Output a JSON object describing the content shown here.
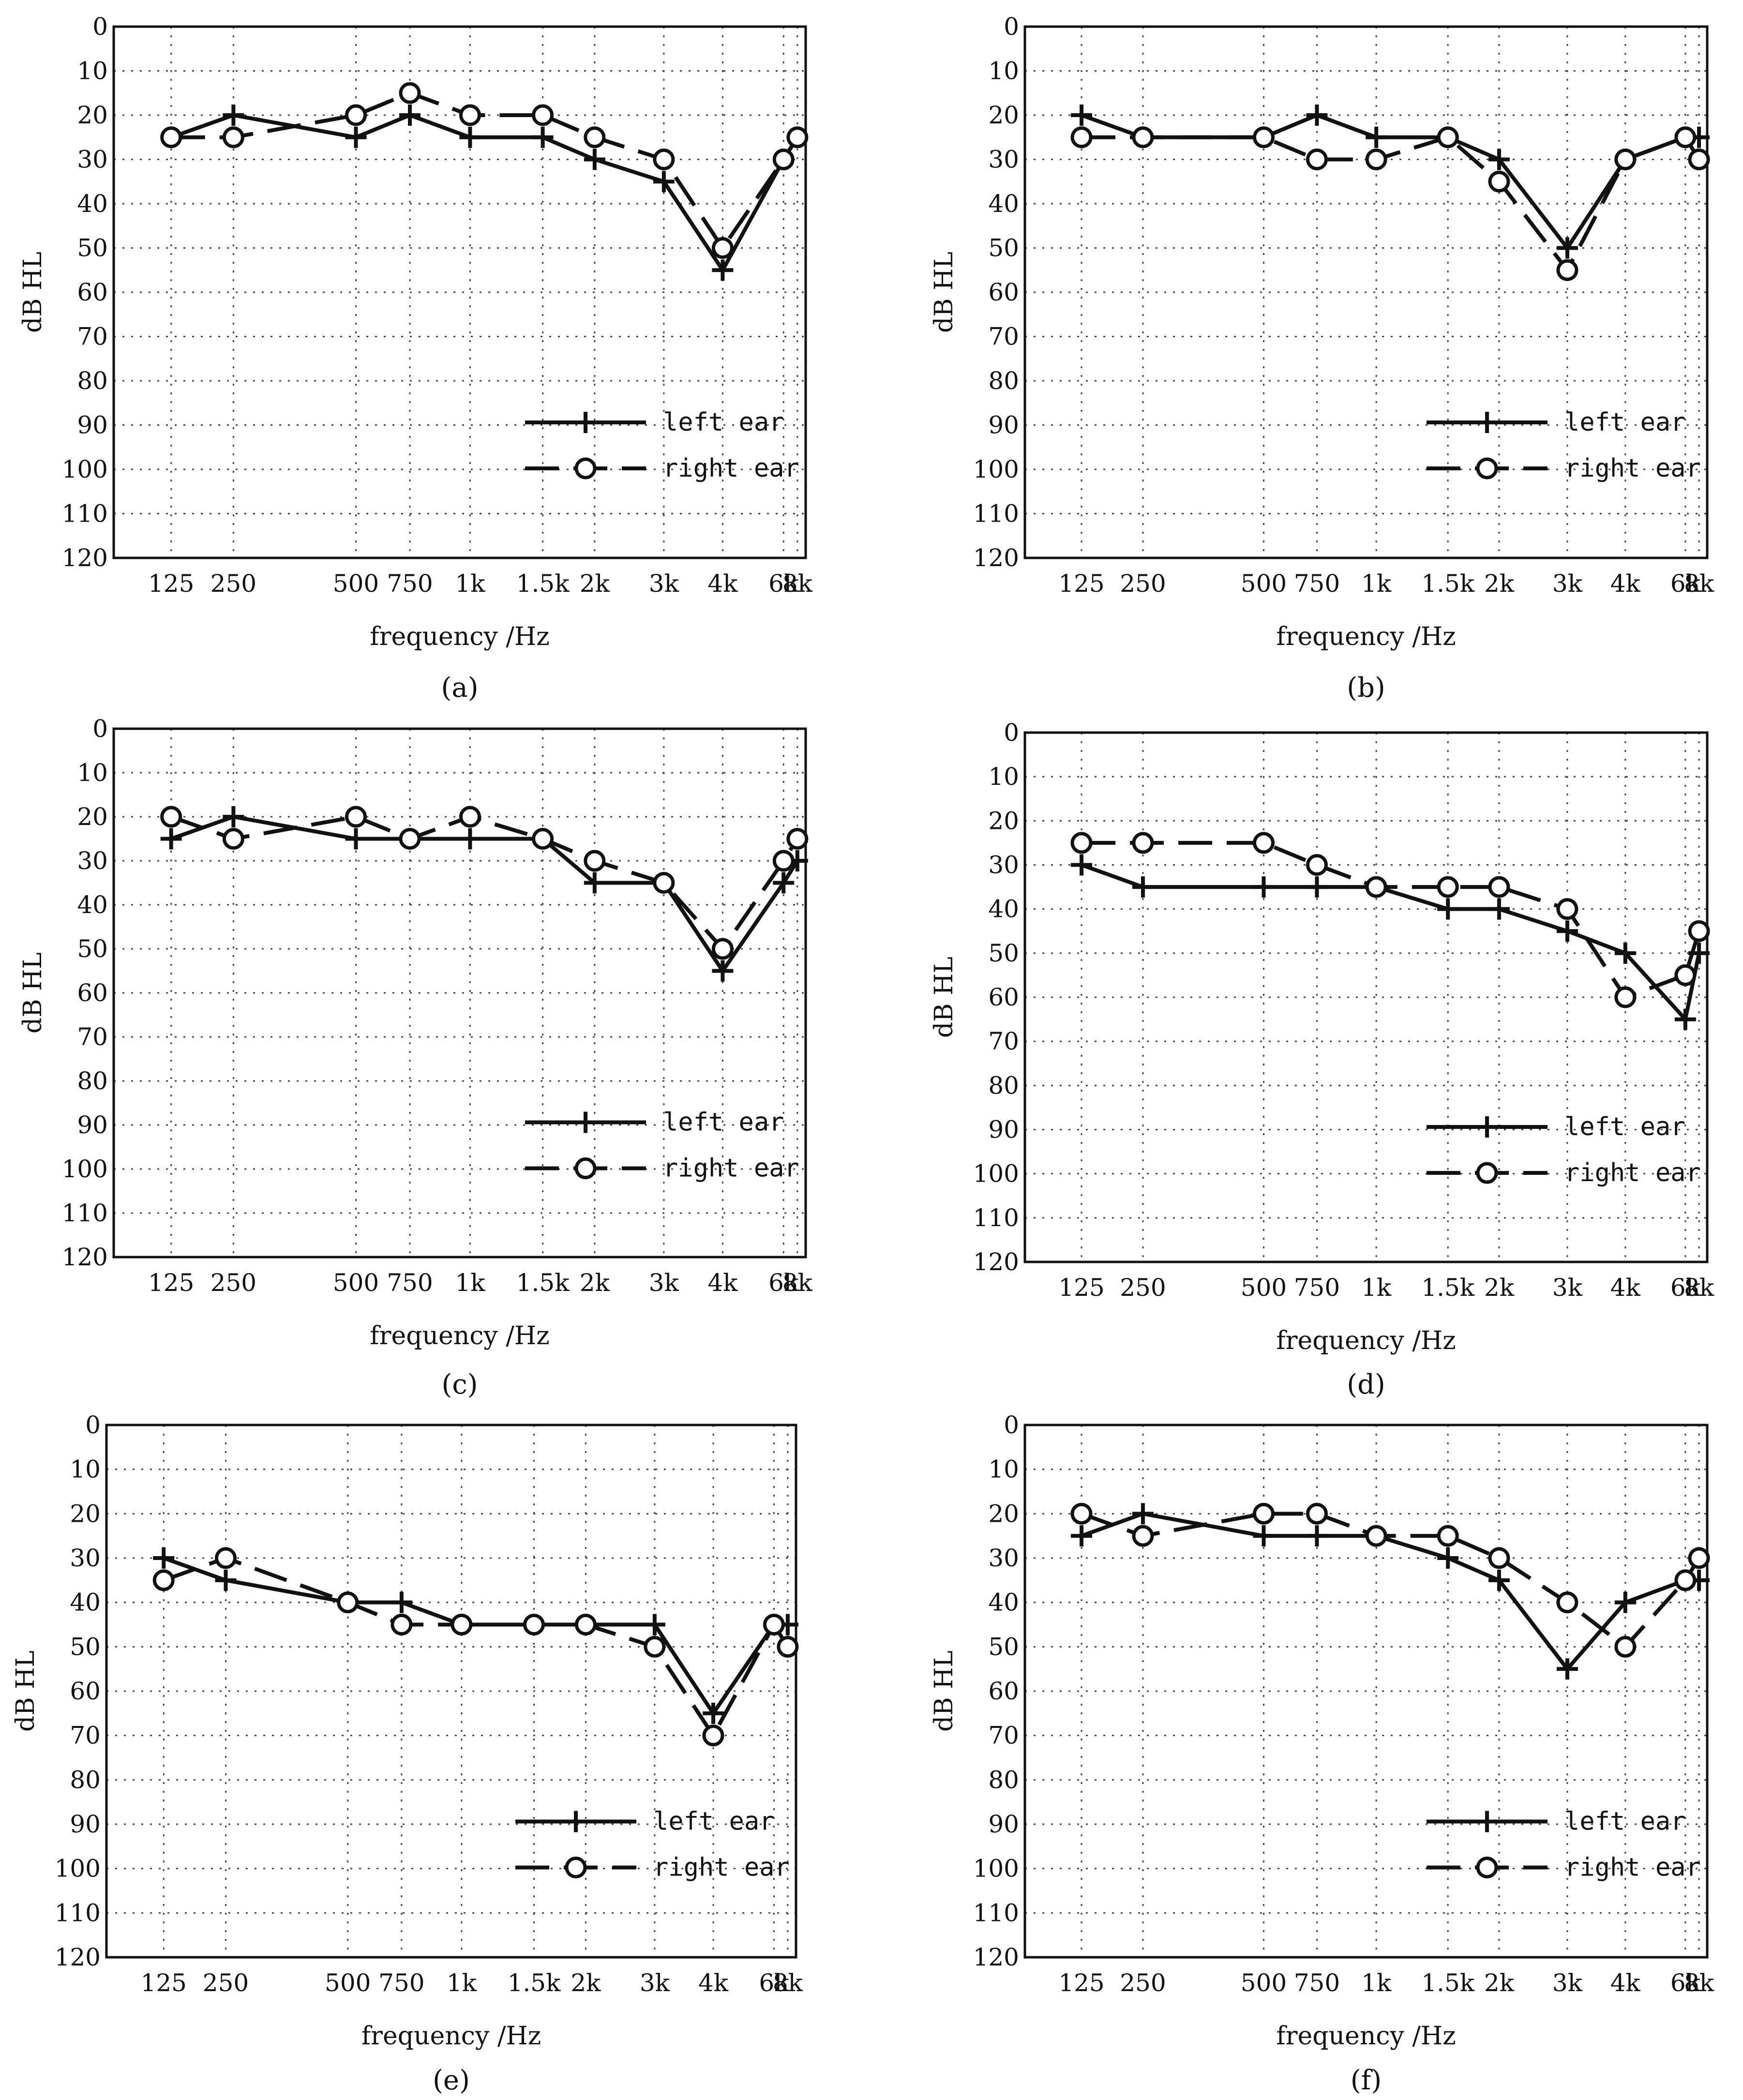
{
  "chart_data": [
    {
      "type": "line",
      "panel": "a",
      "caption": "(a)",
      "xlabel": "frequency /Hz",
      "ylabel": "dB HL",
      "ylim": [
        0,
        120
      ],
      "y_ticks": [
        0,
        10,
        20,
        30,
        40,
        50,
        60,
        70,
        80,
        90,
        100,
        110,
        120
      ],
      "y_inverted": true,
      "grid": true,
      "categories": [
        "125",
        "250",
        "500",
        "750",
        "1k",
        "1.5k",
        "2k",
        "3k",
        "4k",
        "6k",
        "8k"
      ],
      "series": [
        {
          "name": "left ear",
          "marker": "plus",
          "style": "solid",
          "values": [
            25,
            20,
            25,
            20,
            25,
            25,
            30,
            35,
            55,
            30,
            25
          ]
        },
        {
          "name": "right ear",
          "marker": "circle",
          "style": "dashed",
          "values": [
            25,
            25,
            20,
            15,
            20,
            20,
            25,
            30,
            50,
            30,
            25
          ]
        }
      ],
      "legend": "lower-right"
    },
    {
      "type": "line",
      "panel": "b",
      "caption": "(b)",
      "xlabel": "frequency /Hz",
      "ylabel": "dB HL",
      "ylim": [
        0,
        120
      ],
      "y_ticks": [
        0,
        10,
        20,
        30,
        40,
        50,
        60,
        70,
        80,
        90,
        100,
        110,
        120
      ],
      "y_inverted": true,
      "grid": true,
      "categories": [
        "125",
        "250",
        "500",
        "750",
        "1k",
        "1.5k",
        "2k",
        "3k",
        "4k",
        "6k",
        "8k"
      ],
      "series": [
        {
          "name": "left ear",
          "marker": "plus",
          "style": "solid",
          "values": [
            20,
            25,
            25,
            20,
            25,
            25,
            30,
            50,
            30,
            25,
            25
          ]
        },
        {
          "name": "right ear",
          "marker": "circle",
          "style": "dashed",
          "values": [
            25,
            25,
            25,
            30,
            30,
            25,
            35,
            55,
            30,
            25,
            30
          ]
        }
      ],
      "legend": "lower-right"
    },
    {
      "type": "line",
      "panel": "c",
      "caption": "(c)",
      "xlabel": "frequency /Hz",
      "ylabel": "dB HL",
      "ylim": [
        0,
        120
      ],
      "y_ticks": [
        0,
        10,
        20,
        30,
        40,
        50,
        60,
        70,
        80,
        90,
        100,
        110,
        120
      ],
      "y_inverted": true,
      "grid": true,
      "categories": [
        "125",
        "250",
        "500",
        "750",
        "1k",
        "1.5k",
        "2k",
        "3k",
        "4k",
        "6k",
        "8k"
      ],
      "series": [
        {
          "name": "left ear",
          "marker": "plus",
          "style": "solid",
          "values": [
            25,
            20,
            25,
            25,
            25,
            25,
            35,
            35,
            55,
            35,
            30
          ]
        },
        {
          "name": "right ear",
          "marker": "circle",
          "style": "dashed",
          "values": [
            20,
            25,
            20,
            25,
            20,
            25,
            30,
            35,
            50,
            30,
            25
          ]
        }
      ],
      "legend": "lower-right"
    },
    {
      "type": "line",
      "panel": "d",
      "caption": "(d)",
      "xlabel": "frequency /Hz",
      "ylabel": "dB HL",
      "ylim": [
        0,
        120
      ],
      "y_ticks": [
        0,
        10,
        20,
        30,
        40,
        50,
        60,
        70,
        80,
        90,
        100,
        110,
        120
      ],
      "y_inverted": true,
      "grid": true,
      "categories": [
        "125",
        "250",
        "500",
        "750",
        "1k",
        "1.5k",
        "2k",
        "3k",
        "4k",
        "6k",
        "8k"
      ],
      "series": [
        {
          "name": "left ear",
          "marker": "plus",
          "style": "solid",
          "values": [
            30,
            35,
            35,
            35,
            35,
            40,
            40,
            45,
            50,
            65,
            50
          ]
        },
        {
          "name": "right ear",
          "marker": "circle",
          "style": "dashed",
          "values": [
            25,
            25,
            25,
            30,
            35,
            35,
            35,
            40,
            60,
            55,
            45
          ]
        }
      ],
      "legend": "lower-right"
    },
    {
      "type": "line",
      "panel": "e",
      "caption": "(e)",
      "xlabel": "frequency /Hz",
      "ylabel": "dB HL",
      "ylim": [
        0,
        120
      ],
      "y_ticks": [
        0,
        10,
        20,
        30,
        40,
        50,
        60,
        70,
        80,
        90,
        100,
        110,
        120
      ],
      "y_inverted": true,
      "grid": true,
      "categories": [
        "125",
        "250",
        "500",
        "750",
        "1k",
        "1.5k",
        "2k",
        "3k",
        "4k",
        "6k",
        "8k"
      ],
      "series": [
        {
          "name": "left ear",
          "marker": "plus",
          "style": "solid",
          "values": [
            30,
            35,
            40,
            40,
            45,
            45,
            45,
            45,
            65,
            45,
            45
          ]
        },
        {
          "name": "right ear",
          "marker": "circle",
          "style": "dashed",
          "values": [
            35,
            30,
            40,
            45,
            45,
            45,
            45,
            50,
            70,
            45,
            50
          ]
        }
      ],
      "legend": "lower-right"
    },
    {
      "type": "line",
      "panel": "f",
      "caption": "(f)",
      "xlabel": "frequency /Hz",
      "ylabel": "dB HL",
      "ylim": [
        0,
        120
      ],
      "y_ticks": [
        0,
        10,
        20,
        30,
        40,
        50,
        60,
        70,
        80,
        90,
        100,
        110,
        120
      ],
      "y_inverted": true,
      "grid": true,
      "categories": [
        "125",
        "250",
        "500",
        "750",
        "1k",
        "1.5k",
        "2k",
        "3k",
        "4k",
        "6k",
        "8k"
      ],
      "series": [
        {
          "name": "left ear",
          "marker": "plus",
          "style": "solid",
          "values": [
            25,
            20,
            25,
            25,
            25,
            30,
            35,
            55,
            40,
            35,
            35
          ]
        },
        {
          "name": "right ear",
          "marker": "circle",
          "style": "dashed",
          "values": [
            20,
            25,
            20,
            20,
            25,
            25,
            30,
            40,
            50,
            35,
            30
          ]
        }
      ],
      "legend": "lower-right"
    }
  ]
}
